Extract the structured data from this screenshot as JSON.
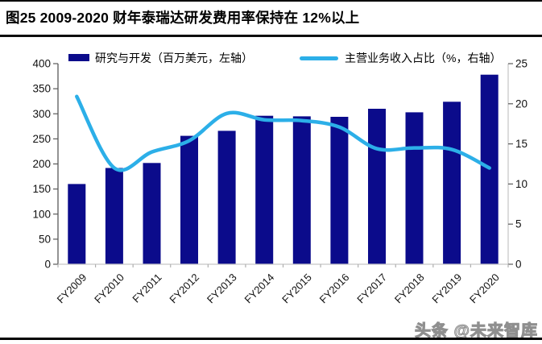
{
  "title": "图25 2009-2020 财年泰瑞达研发费用率保持在 12%以上",
  "watermark": "头条 @未来智库",
  "legend": [
    {
      "label": "研究与开发（百万美元，左轴）",
      "type": "bar",
      "color": "#0B0B8B"
    },
    {
      "label": "主营业务收入占比（%，右轴）",
      "type": "line",
      "color": "#2CAFE8"
    }
  ],
  "colors": {
    "bar": "#0B0B8B",
    "line": "#2CAFE8",
    "axis_dark": "#595959",
    "axis_light": "#C8C8C8",
    "minor_tick": "#B0B0B0",
    "text": "#111111"
  },
  "chart_data": {
    "type": "bar+line",
    "title": "图25 2009-2020 财年泰瑞达研发费用率保持在 12%以上",
    "categories": [
      "FY2009",
      "FY2010",
      "FY2011",
      "FY2012",
      "FY2013",
      "FY2014",
      "FY2015",
      "FY2016",
      "FY2017",
      "FY2018",
      "FY2019",
      "FY2020"
    ],
    "series": [
      {
        "name": "研究与开发（百万美元，左轴）",
        "type": "bar",
        "axis": "left",
        "color": "#0B0B8B",
        "values": [
          160,
          192,
          202,
          256,
          266,
          296,
          295,
          294,
          310,
          303,
          324,
          378
        ]
      },
      {
        "name": "主营业务收入占比（%，右轴）",
        "type": "line",
        "axis": "right",
        "color": "#2CAFE8",
        "values": [
          20.9,
          12,
          14,
          15.4,
          18.8,
          18,
          17.9,
          17.1,
          14.4,
          14.5,
          14.3,
          12
        ]
      }
    ],
    "left_axis": {
      "min": 0,
      "max": 400,
      "step": 50,
      "ticks": [
        0,
        50,
        100,
        150,
        200,
        250,
        300,
        350,
        400
      ]
    },
    "right_axis": {
      "min": 0,
      "max": 25,
      "step": 5,
      "ticks": [
        0,
        5,
        10,
        15,
        20,
        25
      ]
    },
    "grid": false,
    "legend_position": "top",
    "x_label_rotation": -45
  }
}
